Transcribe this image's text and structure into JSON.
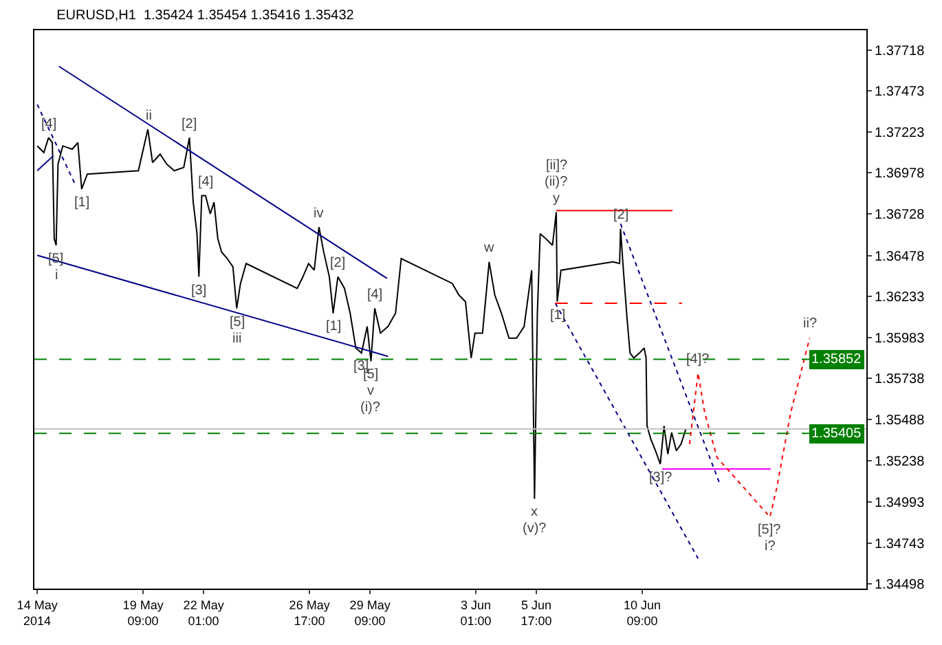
{
  "chart_data": {
    "type": "line",
    "title": "EURUSD,H1  1.35424 1.35454 1.35416 1.35432",
    "xlim": [
      "2014-05-14T14:00",
      "2014-06-20T06:00"
    ],
    "xticks": [
      {
        "value": "2014-05-14T17:00",
        "label": "14 May 2014"
      },
      {
        "value": "2014-05-19T09:00",
        "label": "19 May 09:00"
      },
      {
        "value": "2014-05-22T01:00",
        "label": "22 May 01:00"
      },
      {
        "value": "2014-05-26T17:00",
        "label": "26 May 17:00"
      },
      {
        "value": "2014-05-29T09:00",
        "label": "29 May 09:00"
      },
      {
        "value": "2014-06-03T01:00",
        "label": "3 Jun 01:00"
      },
      {
        "value": "2014-06-05T17:00",
        "label": "5 Jun 17:00"
      },
      {
        "value": "2014-06-10T09:00",
        "label": "10 Jun 09:00"
      }
    ],
    "ylim": [
      1.34468,
      1.37838
    ],
    "yticks": [
      1.34498,
      1.34743,
      1.34993,
      1.35238,
      1.35488,
      1.35738,
      1.35983,
      1.36233,
      1.36478,
      1.36728,
      1.36978,
      1.37223,
      1.37473,
      1.37718
    ],
    "grid": false,
    "marker": "none",
    "series": [
      {
        "type": "line",
        "color": "#000000",
        "line_style": "solid",
        "x": [
          "2014-05-14T17:00",
          "2014-05-15T00:00",
          "2014-05-15T05:00",
          "2014-05-15T09:00",
          "2014-05-15T11:00",
          "2014-05-15T13:00",
          "2014-05-15T15:00",
          "2014-05-15T20:00",
          "2014-05-16T06:00",
          "2014-05-16T12:00",
          "2014-05-16T16:00",
          "2014-05-16T22:00",
          "2014-05-19T04:00",
          "2014-05-19T14:00",
          "2014-05-19T19:00",
          "2014-05-20T03:00",
          "2014-05-20T10:00",
          "2014-05-20T18:00",
          "2014-05-21T04:00",
          "2014-05-21T10:00",
          "2014-05-21T14:00",
          "2014-05-21T18:00",
          "2014-05-21T20:00",
          "2014-05-21T23:00",
          "2014-05-22T03:00",
          "2014-05-22T08:00",
          "2014-05-22T12:00",
          "2014-05-22T16:00",
          "2014-05-22T20:00",
          "2014-05-23T02:00",
          "2014-05-23T08:00",
          "2014-05-23T12:00",
          "2014-05-23T16:00",
          "2014-05-23T22:00",
          "2014-05-26T04:00",
          "2014-05-26T10:00",
          "2014-05-26T16:00",
          "2014-05-26T22:00",
          "2014-05-27T03:00",
          "2014-05-27T08:00",
          "2014-05-27T14:00",
          "2014-05-27T18:00",
          "2014-05-27T23:00",
          "2014-05-28T06:00",
          "2014-05-28T12:00",
          "2014-05-28T18:00",
          "2014-05-29T00:00",
          "2014-05-29T06:00",
          "2014-05-29T10:00",
          "2014-05-29T14:00",
          "2014-05-29T20:00",
          "2014-05-30T04:00",
          "2014-05-30T12:00",
          "2014-05-30T18:00",
          "2014-06-02T00:00",
          "2014-06-02T07:00",
          "2014-06-02T14:00",
          "2014-06-02T20:00",
          "2014-06-03T00:00",
          "2014-06-03T08:00",
          "2014-06-03T15:00",
          "2014-06-03T21:00",
          "2014-06-04T04:00",
          "2014-06-04T12:00",
          "2014-06-04T20:00",
          "2014-06-05T04:00",
          "2014-06-05T12:00",
          "2014-06-05T15:00",
          "2014-06-05T18:00",
          "2014-06-05T21:00",
          "2014-06-06T03:00",
          "2014-06-06T10:00",
          "2014-06-06T14:00",
          "2014-06-06T15:00",
          "2014-06-06T19:00",
          "2014-06-09T02:00",
          "2014-06-09T09:00",
          "2014-06-09T10:00",
          "2014-06-09T13:00",
          "2014-06-09T17:00",
          "2014-06-09T20:00",
          "2014-06-10T00:00",
          "2014-06-10T06:00",
          "2014-06-10T11:00",
          "2014-06-10T13:00",
          "2014-06-10T14:00",
          "2014-06-10T18:00",
          "2014-06-10T23:00",
          "2014-06-11T04:00",
          "2014-06-11T08:00",
          "2014-06-11T12:00",
          "2014-06-11T16:00",
          "2014-06-11T21:00",
          "2014-06-12T02:00",
          "2014-06-12T07:00"
        ],
        "values": [
          1.3714,
          1.371,
          1.3719,
          1.3716,
          1.3658,
          1.3654,
          1.3703,
          1.3714,
          1.3712,
          1.3716,
          1.3688,
          1.3697,
          1.3699,
          1.3724,
          1.3704,
          1.3709,
          1.3703,
          1.3699,
          1.3701,
          1.3719,
          1.368,
          1.3661,
          1.3635,
          1.3684,
          1.3684,
          1.3673,
          1.368,
          1.3658,
          1.365,
          1.3646,
          1.3641,
          1.3616,
          1.3631,
          1.3643,
          1.3628,
          1.3635,
          1.3643,
          1.3639,
          1.3665,
          1.365,
          1.3635,
          1.3613,
          1.3635,
          1.3628,
          1.3613,
          1.3592,
          1.3589,
          1.3605,
          1.3584,
          1.3616,
          1.3601,
          1.3605,
          1.3613,
          1.3646,
          1.3631,
          1.3624,
          1.362,
          1.3586,
          1.3601,
          1.3601,
          1.3644,
          1.3624,
          1.3613,
          1.3598,
          1.3598,
          1.3605,
          1.3639,
          1.3501,
          1.3613,
          1.3661,
          1.3658,
          1.3654,
          1.3674,
          1.362,
          1.3639,
          1.3644,
          1.3643,
          1.3664,
          1.3639,
          1.3609,
          1.3589,
          1.3586,
          1.3589,
          1.3592,
          1.3586,
          1.3545,
          1.3537,
          1.353,
          1.3522,
          1.3545,
          1.3528,
          1.3541,
          1.353,
          1.3534,
          1.3543
        ]
      },
      {
        "type": "line",
        "color": "#00008b",
        "line_style": "solid",
        "x": [
          "2014-05-15T16:00",
          "2014-05-30T03:00"
        ],
        "values": [
          1.3762,
          1.3634
        ]
      },
      {
        "type": "line",
        "color": "#00008b",
        "line_style": "solid",
        "x": [
          "2014-05-14T17:00",
          "2014-05-30T04:00"
        ],
        "values": [
          1.3648,
          1.3587
        ]
      },
      {
        "type": "line",
        "color": "#00008b",
        "line_style": "solid",
        "x": [
          "2014-05-14T17:00",
          "2014-05-15T10:00"
        ],
        "values": [
          1.3699,
          1.3708
        ]
      },
      {
        "type": "line",
        "color": "#00008b",
        "line_style": "dotted",
        "x": [
          "2014-05-14T17:00",
          "2014-05-16T09:00"
        ],
        "values": [
          1.3739,
          1.3691
        ]
      },
      {
        "type": "line",
        "color": "#00008b",
        "line_style": "dotted",
        "x": [
          "2014-06-06T13:00",
          "2014-06-12T20:00"
        ],
        "values": [
          1.3619,
          1.3465
        ]
      },
      {
        "type": "line",
        "color": "#00008b",
        "line_style": "dotted",
        "x": [
          "2014-06-09T10:00",
          "2014-06-13T19:00"
        ],
        "values": [
          1.3667,
          1.351
        ]
      },
      {
        "type": "line",
        "color": "#ff0000",
        "line_style": "solid",
        "x": [
          "2014-06-06T14:00",
          "2014-06-11T17:00"
        ],
        "values": [
          1.3675,
          1.3675
        ]
      },
      {
        "type": "line",
        "color": "#ff0000",
        "line_style": "dashed",
        "x": [
          "2014-06-06T13:00",
          "2014-06-12T03:00"
        ],
        "values": [
          1.3619,
          1.3619
        ]
      },
      {
        "type": "line",
        "color": "#ff00ff",
        "line_style": "solid",
        "x": [
          "2014-06-11T06:00",
          "2014-06-16T01:00"
        ],
        "values": [
          1.3519,
          1.3519
        ]
      },
      {
        "type": "line",
        "color": "#ff0000",
        "line_style": "dotted",
        "x": [
          "2014-06-12T11:00",
          "2014-06-12T20:00",
          "2014-06-13T03:00",
          "2014-06-13T16:00",
          "2014-06-16T00:00",
          "2014-06-16T07:00",
          "2014-06-16T22:00",
          "2014-06-17T18:00"
        ],
        "values": [
          1.3534,
          1.3577,
          1.3553,
          1.3526,
          1.349,
          1.3507,
          1.3553,
          1.3598
        ]
      }
    ],
    "ref_lines": [
      {
        "axis": "y",
        "value": 1.35852,
        "label": "1.35852",
        "color": "#008000",
        "line_style": "dashed"
      },
      {
        "axis": "y",
        "value": 1.35405,
        "label": "1.35405",
        "color": "#008000",
        "line_style": "dashed"
      },
      {
        "axis": "y",
        "value": 1.35432,
        "color": "#c0c0c0",
        "line_style": "solid"
      }
    ],
    "annotations": [
      {
        "text": "[4]",
        "x": "2014-05-15T05:00",
        "y": 1.3719
      },
      {
        "text": "ii",
        "x": "2014-05-19T14:00",
        "y": 1.3724
      },
      {
        "text": "[2]",
        "x": "2014-05-21T10:00",
        "y": 1.3719
      },
      {
        "text": "[1]",
        "x": "2014-05-16T16:00",
        "y": 1.3688
      },
      {
        "text": "[4]",
        "x": "2014-05-22T03:00",
        "y": 1.3684
      },
      {
        "text": "iv",
        "x": "2014-05-27T03:00",
        "y": 1.3665
      },
      {
        "text": "[5]",
        "x": "2014-05-15T13:00",
        "y": 1.3654
      },
      {
        "text": "i",
        "x": "2014-05-15T13:00",
        "y": 1.3654
      },
      {
        "text": "[3]",
        "x": "2014-05-21T20:00",
        "y": 1.3635
      },
      {
        "text": "[2]",
        "x": "2014-05-27T23:00",
        "y": 1.3635
      },
      {
        "text": "[5]",
        "x": "2014-05-23T12:00",
        "y": 1.3616
      },
      {
        "text": "iii",
        "x": "2014-05-23T12:00",
        "y": 1.3616
      },
      {
        "text": "[1]",
        "x": "2014-05-27T18:00",
        "y": 1.3613
      },
      {
        "text": "[4]",
        "x": "2014-05-29T14:00",
        "y": 1.3616
      },
      {
        "text": "[3]",
        "x": "2014-05-29T00:00",
        "y": 1.3589
      },
      {
        "text": "[5]",
        "x": "2014-05-29T10:00",
        "y": 1.3584
      },
      {
        "text": "v",
        "x": "2014-05-29T10:00",
        "y": 1.3584
      },
      {
        "text": "(i)?",
        "x": "2014-05-29T10:00",
        "y": 1.3584
      },
      {
        "text": "w",
        "x": "2014-06-03T15:00",
        "y": 1.3644
      },
      {
        "text": "y",
        "x": "2014-06-06T14:00",
        "y": 1.3674
      },
      {
        "text": "(ii)?",
        "x": "2014-06-06T14:00",
        "y": 1.3674
      },
      {
        "text": "[ii]?",
        "x": "2014-06-06T14:00",
        "y": 1.3674
      },
      {
        "text": "[2]",
        "x": "2014-06-09T10:00",
        "y": 1.3664
      },
      {
        "text": "[1]",
        "x": "2014-06-06T15:00",
        "y": 1.362
      },
      {
        "text": "[3]?",
        "x": "2014-06-11T04:00",
        "y": 1.3522
      },
      {
        "text": "x",
        "x": "2014-06-05T15:00",
        "y": 1.3501
      },
      {
        "text": "(v)?",
        "x": "2014-06-05T15:00",
        "y": 1.3501
      },
      {
        "text": "[4]?",
        "x": "2014-06-12T20:00",
        "y": 1.3577
      },
      {
        "text": "[5]?",
        "x": "2014-06-16T00:00",
        "y": 1.349
      },
      {
        "text": "i?",
        "x": "2014-06-16T00:00",
        "y": 1.349
      },
      {
        "text": "ii?",
        "x": "2014-06-17T18:00",
        "y": 1.3598
      }
    ]
  }
}
